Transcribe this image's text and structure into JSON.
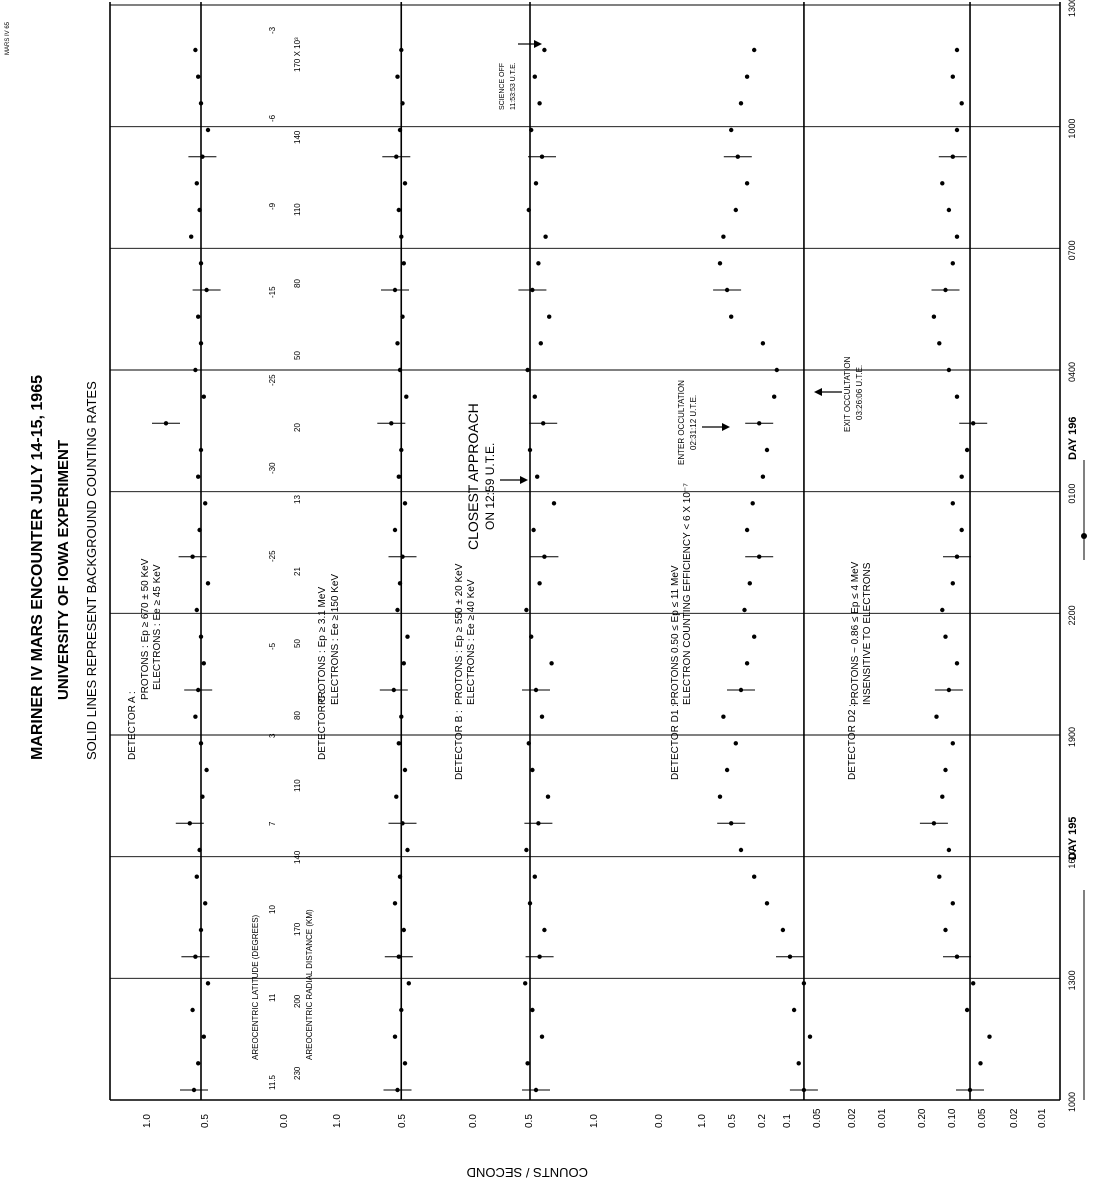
{
  "stamp": "MARS IV 65",
  "title_lines": [
    "MARINER IV MARS ENCOUNTER JULY 14-15, 1965",
    "UNIVERSITY OF IOWA EXPERIMENT"
  ],
  "subtitle": "SOLID LINES REPRESENT BACKGROUND COUNTING RATES",
  "y_axis_title": "COUNTS / SECOND",
  "time_ticks": [
    "1000",
    "1300",
    "1600",
    "1900",
    "2200",
    "0100",
    "0400",
    "0700",
    "1000",
    "1300"
  ],
  "day_labels": {
    "day195": "DAY 195",
    "day196": "DAY 196"
  },
  "detectors": [
    {
      "name": "DETECTOR A :",
      "lines": [
        "PROTONS : Ep ≥ 670 ± 50 KeV",
        "ELECTRONS : Ee ≥ 45 KeV"
      ]
    },
    {
      "name": "DETECTOR C :",
      "lines": [
        "PROTONS : Ep ≥ 3.1 MeV",
        "ELECTRONS : Ee ≥ 150 KeV"
      ]
    },
    {
      "name": "DETECTOR B :",
      "lines": [
        "PROTONS : Ep ≥ 550 ± 20 KeV",
        "ELECTRONS : Ee ≥ 40 KeV"
      ]
    },
    {
      "name": "DETECTOR D1 :",
      "lines": [
        "PROTONS 0.50 ≤ Ep ≤ 11 MeV",
        "ELECTRON COUNTING EFFICIENCY < 6 X 10⁻⁷"
      ]
    },
    {
      "name": "DETECTOR D2 :",
      "lines": [
        "PROTONS ~ 0.86 ≤ Ep ≤ 4 MeV",
        "INSENSITIVE TO ELECTRONS"
      ]
    }
  ],
  "geometry_titles": {
    "latitude": "AREOCENTRIC LATITUDE (DEGREES)",
    "distance": "AREOCENTRIC RADIAL DISTANCE (KM)"
  },
  "latitude_ticks": [
    "11.5",
    "11",
    "10",
    "7",
    "3",
    "-5",
    "-25",
    "-30",
    "-25",
    "-15",
    "-9",
    "-6",
    "-3"
  ],
  "distance_ticks": [
    "230",
    "200",
    "170",
    "140",
    "110",
    "80",
    "50",
    "21",
    "13",
    "20",
    "50",
    "80",
    "110",
    "140",
    "170 X 10³"
  ],
  "annotations": {
    "closest_approach": [
      "CLOSEST APPROACH",
      "ON 12:59 U.T.E."
    ],
    "enter_occultation": [
      "ENTER OCCULTATION",
      "02:31:12 U.T.E."
    ],
    "exit_occultation": [
      "EXIT OCCULTATION",
      "03:26:06 U.T.E."
    ],
    "science_off": [
      "SCIENCE OFF",
      "11:53:53 U.T.E."
    ]
  },
  "chart_data": {
    "type": "scatter",
    "title": "MARINER IV MARS ENCOUNTER JULY 14-15, 1965",
    "x_axis": {
      "ticks": [
        "1000",
        "1300",
        "1600",
        "1900",
        "2200",
        "0100",
        "0400",
        "0700",
        "1000",
        "1300"
      ]
    },
    "series": [
      {
        "name": "DETECTOR A",
        "tick_labels": [
          "1.0",
          "0.5",
          "0.0"
        ],
        "ylim": [
          0.0,
          1.0
        ],
        "background": 0.6,
        "values": [
          0.65,
          0.62,
          0.58,
          0.66,
          0.55,
          0.64,
          0.6,
          0.57,
          0.63,
          0.61,
          0.68,
          0.59,
          0.56,
          0.6,
          0.64,
          0.62,
          0.58,
          0.6,
          0.63,
          0.55,
          0.66,
          0.61,
          0.57,
          0.62,
          0.6,
          0.85,
          0.58,
          0.64,
          0.6,
          0.62,
          0.56,
          0.6,
          0.67,
          0.61,
          0.63,
          0.59,
          0.55,
          0.6,
          0.62,
          0.64
        ]
      },
      {
        "name": "DETECTOR C",
        "tick_labels": [
          "1.0",
          "0.5"
        ],
        "ylim": [
          0.0,
          1.0
        ],
        "background": 0.55,
        "values": [
          0.58,
          0.52,
          0.6,
          0.55,
          0.49,
          0.57,
          0.53,
          0.6,
          0.56,
          0.5,
          0.54,
          0.59,
          0.52,
          0.57,
          0.55,
          0.61,
          0.53,
          0.5,
          0.58,
          0.56,
          0.54,
          0.6,
          0.52,
          0.57,
          0.55,
          0.63,
          0.51,
          0.56,
          0.58,
          0.54,
          0.6,
          0.53,
          0.55,
          0.57,
          0.52,
          0.59,
          0.56,
          0.54,
          0.58,
          0.55
        ]
      },
      {
        "name": "DETECTOR B",
        "tick_labels": [
          "0.0",
          "0.5",
          "1.0"
        ],
        "ylim": [
          0.0,
          1.0
        ],
        "background": 0.5,
        "values": [
          0.55,
          0.48,
          0.6,
          0.52,
          0.46,
          0.58,
          0.62,
          0.5,
          0.54,
          0.47,
          0.57,
          0.65,
          0.52,
          0.49,
          0.6,
          0.55,
          0.68,
          0.51,
          0.47,
          0.58,
          0.62,
          0.53,
          0.7,
          0.56,
          0.5,
          0.61,
          0.54,
          0.48,
          0.59,
          0.66,
          0.52,
          0.57,
          0.63,
          0.49,
          0.55,
          0.6,
          0.51,
          0.58,
          0.54,
          0.62
        ]
      },
      {
        "name": "DETECTOR D1",
        "tick_labels": [
          "0.0",
          "1.0",
          "0.5",
          "0.2",
          "0.1",
          "0.05",
          "0.02",
          "0.01"
        ],
        "log_scale": true,
        "background": 0.07,
        "values": [
          0.07,
          0.08,
          0.06,
          0.09,
          0.07,
          0.1,
          0.12,
          0.18,
          0.25,
          0.35,
          0.45,
          0.6,
          0.5,
          0.4,
          0.55,
          0.35,
          0.3,
          0.25,
          0.32,
          0.28,
          0.22,
          0.3,
          0.26,
          0.2,
          0.18,
          0.22,
          0.15,
          0.14,
          0.2,
          0.45,
          0.5,
          0.6,
          0.55,
          0.4,
          0.3,
          0.38,
          0.45,
          0.35,
          0.3,
          0.25
        ]
      },
      {
        "name": "DETECTOR D2",
        "tick_labels": [
          "0.20",
          "0.10",
          "0.05",
          "0.02",
          "0.01"
        ],
        "log_scale": true,
        "background": 0.065,
        "values": [
          0.065,
          0.05,
          0.04,
          0.07,
          0.06,
          0.09,
          0.12,
          0.1,
          0.14,
          0.11,
          0.16,
          0.13,
          0.12,
          0.1,
          0.15,
          0.11,
          0.09,
          0.12,
          0.13,
          0.1,
          0.09,
          0.08,
          0.1,
          0.08,
          0.07,
          0.06,
          0.09,
          0.11,
          0.14,
          0.16,
          0.12,
          0.1,
          0.09,
          0.11,
          0.13,
          0.1,
          0.09,
          0.08,
          0.1,
          0.09
        ]
      }
    ]
  }
}
